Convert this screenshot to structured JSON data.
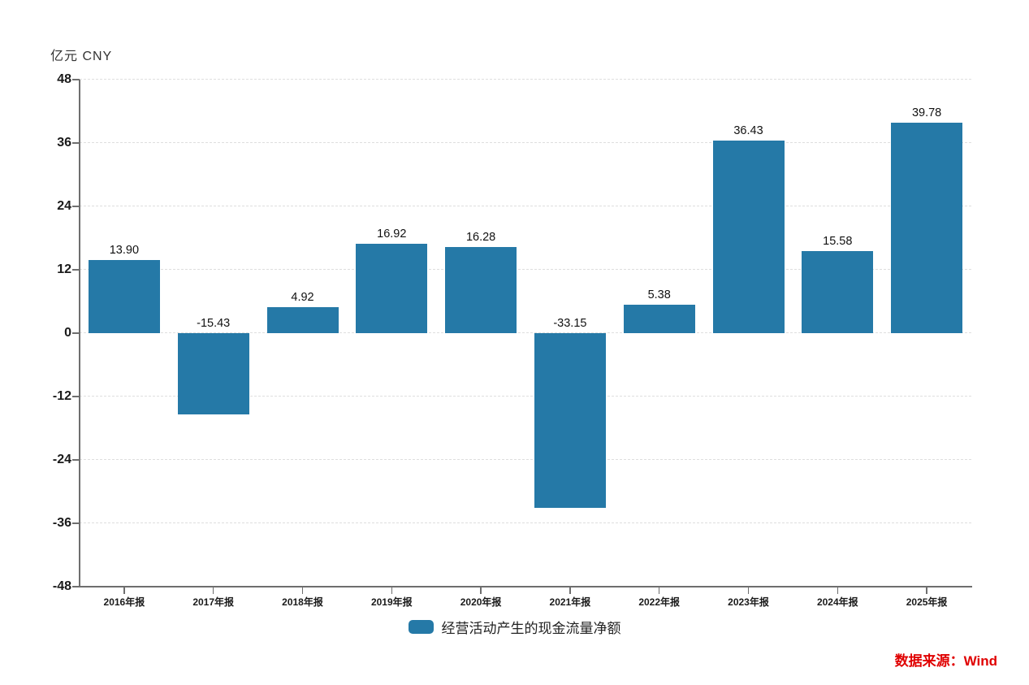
{
  "chart_data": {
    "type": "bar",
    "title": "",
    "unit_label": "亿元 CNY",
    "categories": [
      "2016年报",
      "2017年报",
      "2018年报",
      "2019年报",
      "2020年报",
      "2021年报",
      "2022年报",
      "2023年报",
      "2024年报",
      "2025年报"
    ],
    "series": [
      {
        "name": "经营活动产生的现金流量净额",
        "values": [
          13.9,
          -15.43,
          4.92,
          16.92,
          16.28,
          -33.15,
          5.38,
          36.43,
          15.58,
          39.78
        ]
      }
    ],
    "value_labels": [
      "13.90",
      "-15.43",
      "4.92",
      "16.92",
      "16.28",
      "-33.15",
      "5.38",
      "36.43",
      "15.58",
      "39.78"
    ],
    "ylim": [
      -48,
      48
    ],
    "y_ticks": [
      48,
      36,
      24,
      12,
      0,
      -12,
      -24,
      -36,
      -48
    ],
    "grid": true,
    "legend_position": "bottom",
    "bar_color": "#2579a7"
  },
  "legend": {
    "label": "经营活动产生的现金流量净额",
    "swatch_color": "#2579a7"
  },
  "source": {
    "text": "数据来源：Wind",
    "color": "#e00000"
  }
}
